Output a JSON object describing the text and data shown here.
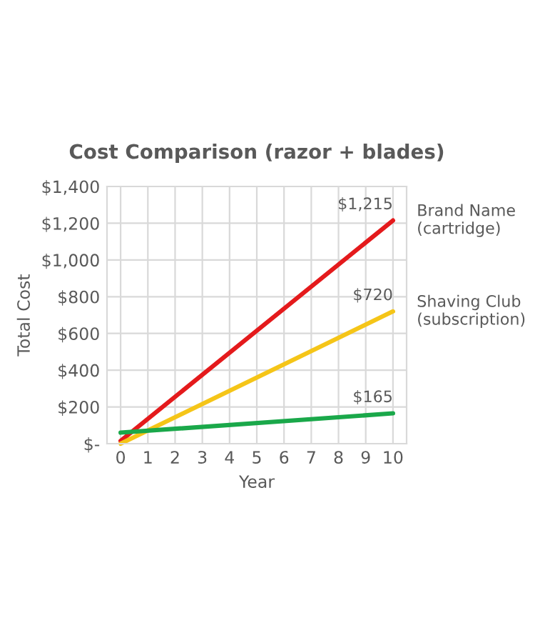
{
  "chart_data": {
    "type": "line",
    "title": "Cost Comparison (razor + blades)",
    "xlabel": "Year",
    "ylabel": "Total Cost",
    "x": [
      0,
      10
    ],
    "series": [
      {
        "name": "Brand Name\n(cartridge)",
        "color": "#e41a1c",
        "values": [
          15,
          1215
        ],
        "value_labels": [
          null,
          "$1,215"
        ]
      },
      {
        "name": "Shaving Club\n(subscription)",
        "color": "#f5c518",
        "values": [
          0,
          720
        ],
        "value_labels": [
          null,
          "$720"
        ]
      },
      {
        "color": "#1aa84a",
        "values": [
          60,
          165
        ],
        "value_labels": [
          null,
          "$165"
        ]
      }
    ],
    "xlim": [
      -0.5,
      10.5
    ],
    "xticks": [
      0,
      1,
      2,
      3,
      4,
      5,
      6,
      7,
      8,
      9,
      10
    ],
    "ylim": [
      0,
      1400
    ],
    "yticks": [
      {
        "value": 0,
        "label": "$-"
      },
      {
        "value": 200,
        "label": "$200"
      },
      {
        "value": 400,
        "label": "$400"
      },
      {
        "value": 600,
        "label": "$600"
      },
      {
        "value": 800,
        "label": "$800"
      },
      {
        "value": 1000,
        "label": "$1,000"
      },
      {
        "value": 1200,
        "label": "$1,200"
      },
      {
        "value": 1400,
        "label": "$1,400"
      }
    ],
    "grid": true,
    "legend": false,
    "marker": "none",
    "line_style": "solid"
  }
}
